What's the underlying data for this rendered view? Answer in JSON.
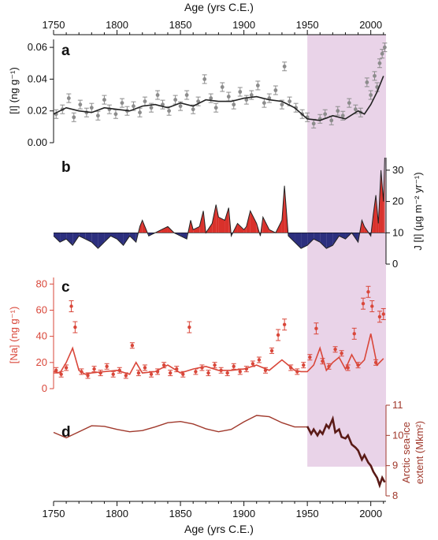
{
  "figure": {
    "top_axis_label": "Age (yrs C.E.)",
    "bottom_axis_label": "Age (yrs C.E.)",
    "x_ticks": [
      "1750",
      "1800",
      "1850",
      "1900",
      "1950",
      "2000"
    ],
    "shaded_region_color": "#e9d3e8"
  },
  "chart_data": [
    {
      "type": "scatter",
      "panel_label": "a",
      "ylabel": "[I] (ng g⁻¹)",
      "ylim": [
        0,
        0.065
      ],
      "y_ticks": [
        "0.00",
        "0.02",
        "0.04",
        "0.06"
      ],
      "xlim": [
        1750,
        2012
      ],
      "shaded_x": [
        1950,
        2012
      ],
      "point_color": "#8c8c8c",
      "line_color": "#222222",
      "points": {
        "x": [
          1752,
          1757,
          1762,
          1766,
          1771,
          1776,
          1780,
          1785,
          1790,
          1794,
          1799,
          1804,
          1808,
          1813,
          1818,
          1822,
          1827,
          1832,
          1836,
          1841,
          1846,
          1850,
          1855,
          1860,
          1864,
          1869,
          1874,
          1878,
          1883,
          1888,
          1892,
          1897,
          1902,
          1906,
          1911,
          1916,
          1920,
          1925,
          1930,
          1932,
          1936,
          1941,
          1946,
          1950,
          1955,
          1960,
          1964,
          1969,
          1974,
          1978,
          1983,
          1988,
          1992,
          1997,
          2000,
          2003,
          2005,
          2007,
          2009,
          2011
        ],
        "y": [
          0.018,
          0.021,
          0.028,
          0.016,
          0.024,
          0.019,
          0.022,
          0.017,
          0.027,
          0.021,
          0.018,
          0.025,
          0.02,
          0.023,
          0.019,
          0.026,
          0.022,
          0.03,
          0.024,
          0.02,
          0.027,
          0.023,
          0.03,
          0.021,
          0.026,
          0.04,
          0.028,
          0.022,
          0.035,
          0.029,
          0.024,
          0.032,
          0.027,
          0.03,
          0.036,
          0.025,
          0.028,
          0.033,
          0.024,
          0.048,
          0.026,
          0.022,
          0.018,
          0.016,
          0.012,
          0.015,
          0.018,
          0.014,
          0.02,
          0.017,
          0.025,
          0.021,
          0.019,
          0.038,
          0.03,
          0.042,
          0.035,
          0.05,
          0.056,
          0.06
        ]
      },
      "smooth": {
        "x": [
          1750,
          1760,
          1770,
          1780,
          1790,
          1800,
          1810,
          1820,
          1830,
          1840,
          1850,
          1860,
          1870,
          1880,
          1890,
          1900,
          1910,
          1920,
          1930,
          1940,
          1950,
          1960,
          1970,
          1980,
          1990,
          1995,
          2000,
          2005,
          2010
        ],
        "y": [
          0.018,
          0.022,
          0.02,
          0.019,
          0.022,
          0.021,
          0.02,
          0.023,
          0.024,
          0.022,
          0.025,
          0.023,
          0.027,
          0.026,
          0.026,
          0.028,
          0.029,
          0.027,
          0.026,
          0.022,
          0.015,
          0.014,
          0.017,
          0.015,
          0.02,
          0.018,
          0.024,
          0.032,
          0.042
        ]
      }
    },
    {
      "type": "area",
      "panel_label": "b",
      "ylabel": "J [I] (µg m⁻² yr⁻¹)",
      "ylim": [
        0,
        34
      ],
      "y_ticks": [
        "0",
        "10",
        "20",
        "30"
      ],
      "baseline": 10,
      "xlim": [
        1750,
        2012
      ],
      "shaded_x": [
        1950,
        2012
      ],
      "colors": {
        "above": "#d9312b",
        "below": "#2c2f7e",
        "line": "#222222"
      },
      "x": [
        1750,
        1755,
        1760,
        1765,
        1770,
        1775,
        1780,
        1785,
        1790,
        1795,
        1800,
        1805,
        1810,
        1815,
        1818,
        1820,
        1825,
        1830,
        1835,
        1840,
        1845,
        1850,
        1855,
        1858,
        1860,
        1865,
        1868,
        1870,
        1875,
        1878,
        1880,
        1885,
        1888,
        1890,
        1895,
        1900,
        1902,
        1905,
        1910,
        1913,
        1915,
        1920,
        1925,
        1930,
        1932,
        1935,
        1940,
        1945,
        1950,
        1955,
        1960,
        1965,
        1970,
        1975,
        1980,
        1985,
        1990,
        1993,
        1995,
        2000,
        2002,
        2004,
        2006,
        2008,
        2010,
        2011
      ],
      "y": [
        9,
        7,
        8,
        6,
        9,
        8,
        7,
        5,
        7,
        9,
        8,
        6,
        9,
        7,
        12,
        14,
        9,
        10,
        11,
        12,
        10,
        9,
        8,
        14,
        11,
        12,
        17,
        10,
        13,
        19,
        15,
        14,
        18,
        9,
        13,
        11,
        12,
        17,
        13,
        9,
        15,
        11,
        10,
        14,
        25,
        9,
        7,
        5,
        6,
        8,
        7,
        5,
        6,
        9,
        8,
        10,
        7,
        14,
        12,
        9,
        16,
        22,
        13,
        30,
        20,
        34
      ]
    },
    {
      "type": "scatter",
      "panel_label": "c",
      "ylabel": "[Na] (ng g⁻¹)",
      "ylim": [
        0,
        85
      ],
      "y_ticks": [
        "0",
        "20",
        "40",
        "60",
        "80"
      ],
      "xlim": [
        1750,
        2012
      ],
      "shaded_x": [
        1950,
        2012
      ],
      "color": "#d9473a",
      "points": {
        "x": [
          1752,
          1756,
          1760,
          1764,
          1767,
          1772,
          1777,
          1782,
          1787,
          1792,
          1797,
          1802,
          1807,
          1812,
          1817,
          1822,
          1827,
          1832,
          1837,
          1842,
          1847,
          1852,
          1857,
          1862,
          1867,
          1872,
          1877,
          1882,
          1887,
          1892,
          1897,
          1902,
          1907,
          1912,
          1917,
          1922,
          1927,
          1932,
          1937,
          1942,
          1947,
          1952,
          1957,
          1962,
          1967,
          1972,
          1977,
          1982,
          1987,
          1990,
          1994,
          1998,
          2001,
          2004,
          2007,
          2010
        ],
        "y": [
          14,
          11,
          16,
          63,
          47,
          13,
          10,
          15,
          12,
          17,
          11,
          14,
          10,
          33,
          12,
          16,
          11,
          13,
          18,
          12,
          15,
          11,
          47,
          13,
          16,
          12,
          18,
          14,
          12,
          17,
          13,
          15,
          19,
          22,
          14,
          29,
          41,
          49,
          16,
          13,
          18,
          24,
          46,
          21,
          17,
          30,
          27,
          16,
          42,
          18,
          65,
          74,
          63,
          20,
          55,
          57
        ]
      },
      "smooth": {
        "x": [
          1750,
          1755,
          1760,
          1765,
          1770,
          1775,
          1780,
          1790,
          1800,
          1810,
          1815,
          1820,
          1830,
          1840,
          1850,
          1860,
          1870,
          1880,
          1890,
          1900,
          1910,
          1920,
          1930,
          1940,
          1945,
          1950,
          1955,
          1960,
          1965,
          1970,
          1975,
          1980,
          1985,
          1990,
          1995,
          2000,
          2005,
          2010
        ],
        "y": [
          13,
          12,
          20,
          31,
          14,
          11,
          12,
          13,
          14,
          11,
          20,
          12,
          13,
          18,
          12,
          15,
          17,
          14,
          14,
          15,
          18,
          14,
          22,
          14,
          13,
          13,
          18,
          31,
          14,
          20,
          24,
          15,
          26,
          17,
          22,
          42,
          18,
          23
        ]
      }
    },
    {
      "type": "line",
      "panel_label": "d",
      "ylabel": "Arctic sea-ice extent (Mkm²)",
      "ylim": [
        8,
        11
      ],
      "y_ticks": [
        "8",
        "9",
        "10",
        "11"
      ],
      "xlim": [
        1750,
        2012
      ],
      "shaded_x": [
        1950,
        2012
      ],
      "colors": {
        "reconstruction": "#a0392c",
        "observed": "#5a1a16"
      },
      "reconstruction": {
        "x": [
          1750,
          1760,
          1770,
          1780,
          1790,
          1800,
          1810,
          1820,
          1830,
          1840,
          1850,
          1860,
          1870,
          1880,
          1890,
          1900,
          1910,
          1920,
          1930,
          1940,
          1950
        ],
        "y": [
          10.1,
          9.92,
          10.12,
          10.32,
          10.3,
          10.2,
          10.12,
          10.16,
          10.28,
          10.42,
          10.46,
          10.38,
          10.22,
          10.12,
          10.2,
          10.45,
          10.66,
          10.62,
          10.42,
          10.28,
          10.28
        ]
      },
      "observed": {
        "x": [
          1950,
          1953,
          1955,
          1958,
          1960,
          1962,
          1965,
          1967,
          1970,
          1972,
          1975,
          1977,
          1980,
          1982,
          1985,
          1988,
          1990,
          1993,
          1995,
          1998,
          2000,
          2002,
          2005,
          2007,
          2009,
          2011
        ],
        "y": [
          10.3,
          10.05,
          10.2,
          10.0,
          10.15,
          10.05,
          10.35,
          10.25,
          10.55,
          10.1,
          10.2,
          9.95,
          9.9,
          10.0,
          9.7,
          9.6,
          9.5,
          9.2,
          9.35,
          9.1,
          9.0,
          8.8,
          8.6,
          8.35,
          8.6,
          8.45
        ]
      }
    }
  ]
}
